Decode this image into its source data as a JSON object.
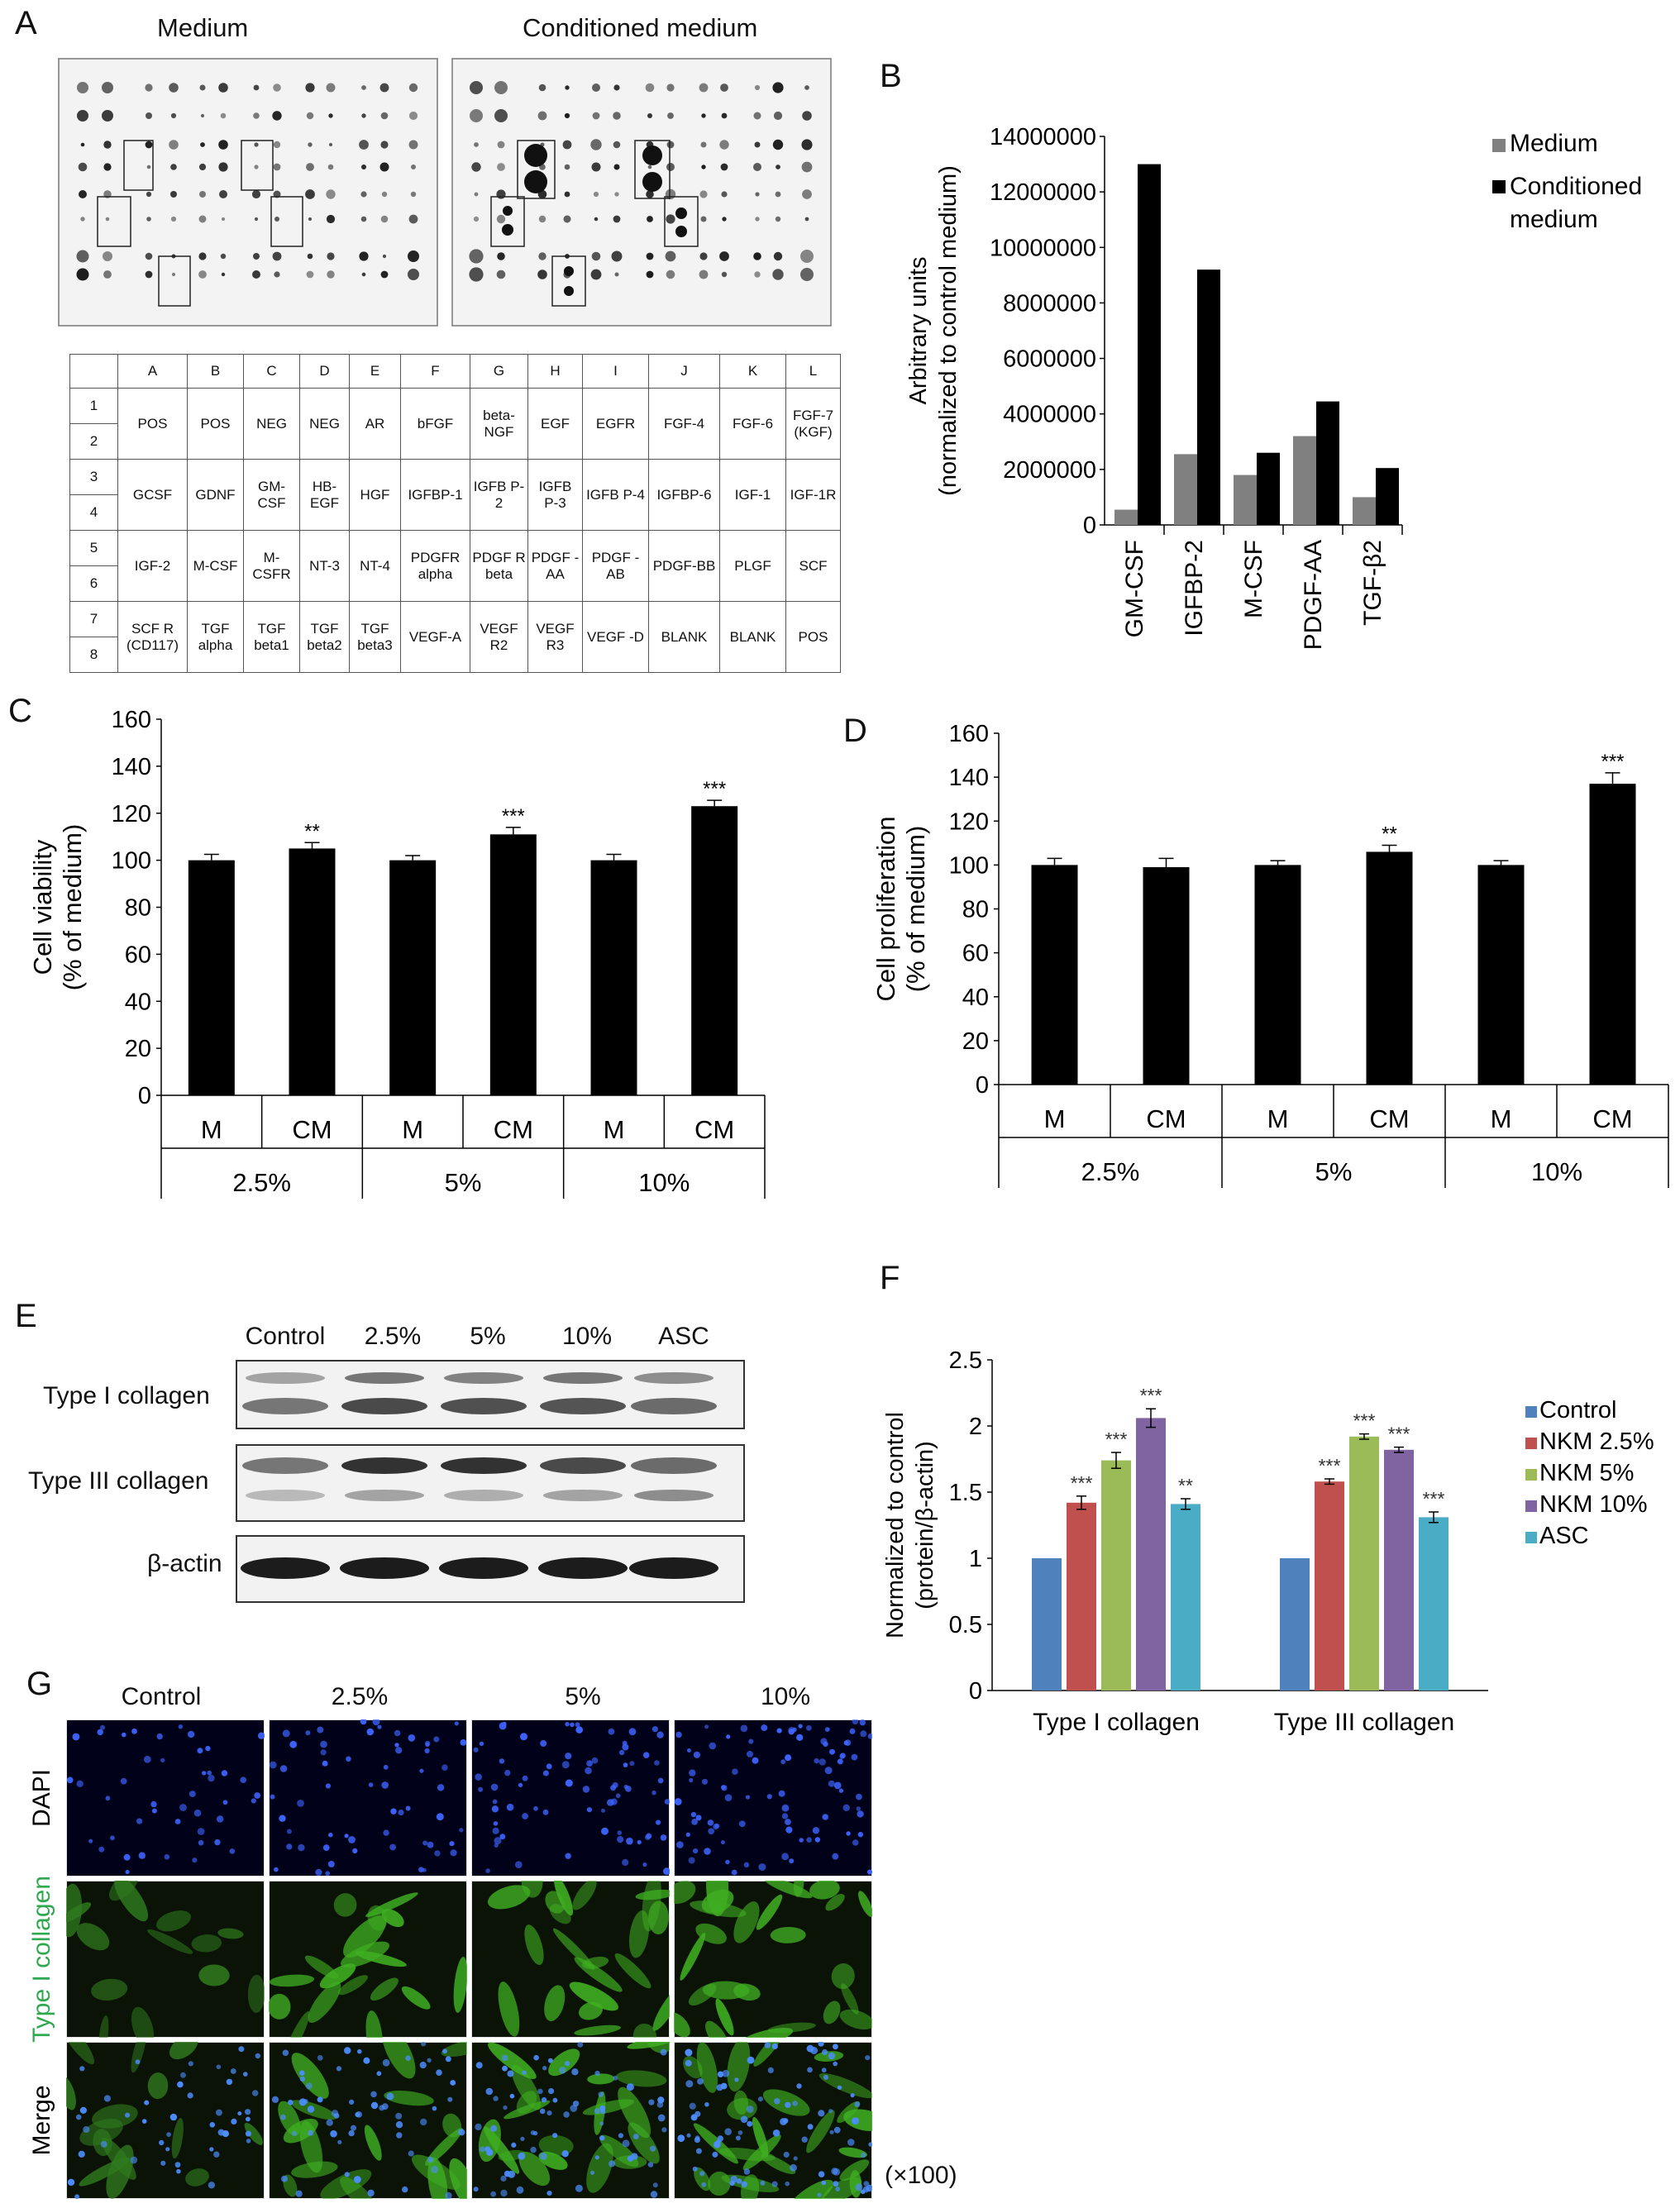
{
  "panels": {
    "a": "A",
    "b": "B",
    "c": "C",
    "d": "D",
    "e": "E",
    "f": "F",
    "g": "G"
  },
  "blot_a": {
    "left_title": "Medium",
    "right_title": "Conditioned medium",
    "spot_color": "#111111"
  },
  "array_table": {
    "columns": [
      "",
      "A",
      "B",
      "C",
      "D",
      "E",
      "F",
      "G",
      "H",
      "I",
      "J",
      "K",
      "L"
    ],
    "rows": [
      "1",
      "2",
      "3",
      "4",
      "5",
      "6",
      "7",
      "8"
    ],
    "cells": [
      [
        "POS",
        "POS",
        "NEG",
        "NEG",
        "AR",
        "bFGF",
        "beta-NGF",
        "EGF",
        "EGFR",
        "FGF-4",
        "FGF-6",
        "FGF-7 (KGF)"
      ],
      [
        "GCSF",
        "GDNF",
        "GM-CSF",
        "HB-EGF",
        "HGF",
        "IGFBP-1",
        "IGFB P-2",
        "IGFB P-3",
        "IGFB P-4",
        "IGFBP-6",
        "IGF-1",
        "IGF-1R"
      ],
      [
        "IGF-2",
        "M-CSF",
        "M-CSFR",
        "NT-3",
        "NT-4",
        "PDGFR alpha",
        "PDGF R beta",
        "PDGF -AA",
        "PDGF -AB",
        "PDGF-BB",
        "PLGF",
        "SCF"
      ],
      [
        "SCF R (CD117)",
        "TGF alpha",
        "TGF beta1",
        "TGF beta2",
        "TGF beta3",
        "VEGF-A",
        "VEGF R2",
        "VEGF R3",
        "VEGF -D",
        "BLANK",
        "BLANK",
        "POS"
      ]
    ]
  },
  "chart_data": [
    {
      "id": "B",
      "type": "bar",
      "categories": [
        "GM-CSF",
        "IGFBP-2",
        "M-CSF",
        "PDGF-AA",
        "TGF-β2"
      ],
      "series": [
        {
          "name": "Medium",
          "color": "#808080",
          "values": [
            550000,
            2550000,
            1800000,
            3200000,
            1000000
          ]
        },
        {
          "name": "Conditioned medium",
          "color": "#000000",
          "values": [
            13000000,
            9200000,
            2600000,
            4450000,
            2050000
          ]
        }
      ],
      "ylabel_line1": "Arbitrary units",
      "ylabel_line2": "(normalized to control medium)",
      "ylim": [
        0,
        14000000
      ],
      "yticks": [
        "0",
        "2000000",
        "4000000",
        "6000000",
        "8000000",
        "10000000",
        "12000000",
        "14000000"
      ],
      "legend_placement": "right",
      "grid": false
    },
    {
      "id": "C",
      "type": "bar",
      "categories": [
        "M",
        "CM",
        "M",
        "CM",
        "M",
        "CM"
      ],
      "groups": [
        "2.5%",
        "5%",
        "10%"
      ],
      "values": [
        100,
        105,
        100,
        111,
        100,
        123
      ],
      "errors": [
        2.5,
        2.5,
        2,
        3,
        2.5,
        2.5
      ],
      "annotations": [
        "",
        "**",
        "",
        "***",
        "",
        "***"
      ],
      "ylabel_line1": "Cell viability",
      "ylabel_line2": "(% of medium)",
      "ylim": [
        0,
        160
      ],
      "yticks": [
        "0",
        "20",
        "40",
        "60",
        "80",
        "100",
        "120",
        "140",
        "160"
      ],
      "bar_color": "#000000"
    },
    {
      "id": "D",
      "type": "bar",
      "categories": [
        "M",
        "CM",
        "M",
        "CM",
        "M",
        "CM"
      ],
      "groups": [
        "2.5%",
        "5%",
        "10%"
      ],
      "values": [
        100,
        99,
        100,
        106,
        100,
        137
      ],
      "errors": [
        3,
        4,
        2,
        3,
        2,
        5
      ],
      "annotations": [
        "",
        "",
        "",
        "**",
        "",
        "***"
      ],
      "ylabel_line1": "Cell proliferation",
      "ylabel_line2": "(% of medium)",
      "ylim": [
        0,
        160
      ],
      "yticks": [
        "0",
        "20",
        "40",
        "60",
        "80",
        "100",
        "120",
        "140",
        "160"
      ],
      "bar_color": "#000000"
    },
    {
      "id": "F",
      "type": "bar",
      "categories": [
        "Type I collagen",
        "Type III collagen"
      ],
      "series": [
        {
          "name": "Control",
          "color": "#4f81bd",
          "values": [
            1.0,
            1.0
          ],
          "errors": [
            0,
            0
          ],
          "annotations": [
            "",
            ""
          ]
        },
        {
          "name": "NKM 2.5%",
          "color": "#c0504d",
          "values": [
            1.42,
            1.58
          ],
          "errors": [
            0.05,
            0.02
          ],
          "annotations": [
            "***",
            "***"
          ]
        },
        {
          "name": "NKM 5%",
          "color": "#9bbb59",
          "values": [
            1.74,
            1.92
          ],
          "errors": [
            0.06,
            0.02
          ],
          "annotations": [
            "***",
            "***"
          ]
        },
        {
          "name": "NKM 10%",
          "color": "#8064a2",
          "values": [
            2.06,
            1.82
          ],
          "errors": [
            0.07,
            0.02
          ],
          "annotations": [
            "***",
            "***"
          ]
        },
        {
          "name": "ASC",
          "color": "#4bacc6",
          "values": [
            1.41,
            1.31
          ],
          "errors": [
            0.04,
            0.04
          ],
          "annotations": [
            "**",
            "***"
          ]
        }
      ],
      "ylabel_line1": "Normalized to control",
      "ylabel_line2": "(protein/β-actin)",
      "ylim": [
        0,
        2.5
      ],
      "yticks": [
        "0",
        "0.5",
        "1",
        "1.5",
        "2",
        "2.5"
      ],
      "legend_placement": "right"
    }
  ],
  "blot_e": {
    "lanes": [
      "Control",
      "2.5%",
      "5%",
      "10%",
      "ASC"
    ],
    "rows": [
      "Type I collagen",
      "Type III collagen",
      "β-actin"
    ]
  },
  "micro_g": {
    "columns": [
      "Control",
      "2.5%",
      "5%",
      "10%"
    ],
    "rows": [
      "DAPI",
      "Type I collagen",
      "Merge"
    ],
    "row_colors": [
      "#000000",
      "#2fa84f",
      "#000000"
    ],
    "magnification": "(×100)"
  }
}
